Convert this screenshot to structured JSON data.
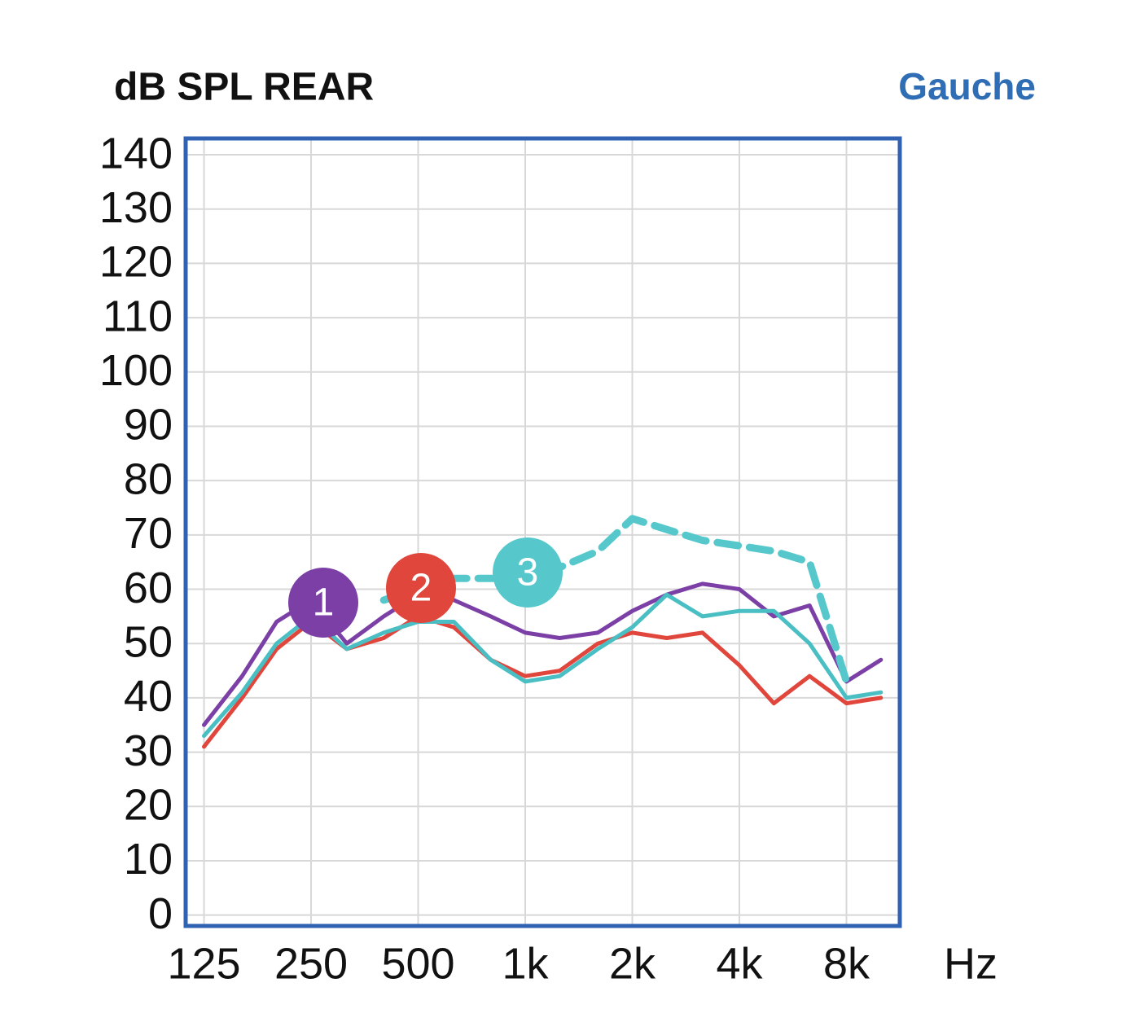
{
  "chart_data": {
    "type": "line",
    "title": "dB SPL REAR",
    "subtitle": "Gauche",
    "x_label": "Hz",
    "x_log_scale": true,
    "grid": true,
    "x": [
      125,
      160,
      200,
      250,
      315,
      400,
      500,
      630,
      800,
      1000,
      1250,
      1600,
      2000,
      2500,
      3150,
      4000,
      5000,
      6300,
      8000,
      10000
    ],
    "series": [
      {
        "name": "1",
        "color": "#7b3fa6",
        "dashed": false,
        "values": [
          35,
          44,
          54,
          58,
          50,
          55,
          59,
          58,
          55,
          52,
          51,
          52,
          56,
          59,
          61,
          60,
          55,
          57,
          43,
          47
        ]
      },
      {
        "name": "2",
        "color": "#e0463c",
        "dashed": false,
        "values": [
          31,
          40,
          49,
          54,
          49,
          51,
          55,
          53,
          47,
          44,
          45,
          50,
          52,
          51,
          52,
          46,
          39,
          44,
          39,
          40
        ]
      },
      {
        "color": "#49bfc4",
        "dashed": false,
        "values": [
          33,
          41,
          50,
          55,
          49,
          52,
          54,
          54,
          47,
          43,
          44,
          49,
          53,
          59,
          55,
          56,
          56,
          50,
          40,
          41
        ]
      },
      {
        "name": "3",
        "color": "#56c8cc",
        "dashed": true,
        "values": [
          null,
          null,
          null,
          null,
          null,
          58,
          60,
          62,
          62,
          62,
          64,
          67,
          73,
          71,
          69,
          68,
          67,
          65,
          43,
          null
        ]
      }
    ],
    "xlim": [
      111,
      11300
    ],
    "xticks": [
      125,
      250,
      500,
      {
        "value": 1000,
        "label": "1k"
      },
      {
        "value": 2000,
        "label": "2k"
      },
      {
        "value": 4000,
        "label": "4k"
      },
      {
        "value": 8000,
        "label": "8k"
      }
    ],
    "ylim": [
      -2,
      143
    ],
    "yticks": [
      0,
      10,
      20,
      30,
      40,
      50,
      60,
      70,
      80,
      90,
      100,
      110,
      120,
      130,
      140
    ]
  }
}
